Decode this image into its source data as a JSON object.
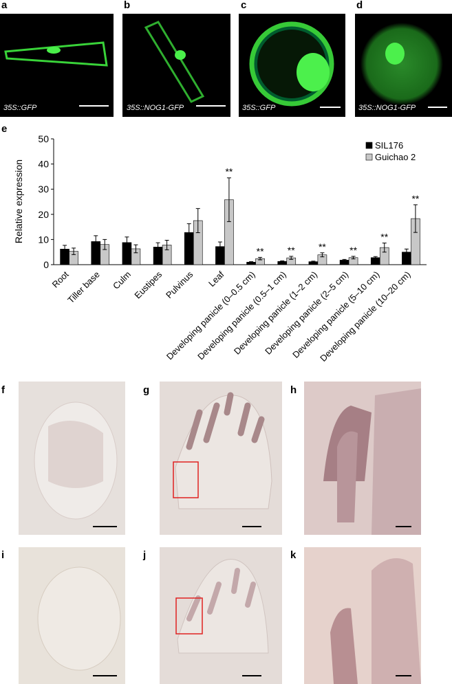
{
  "panels": [
    {
      "letter": "a",
      "caption": "35S::GFP"
    },
    {
      "letter": "b",
      "caption": "35S::NOG1-GFP"
    },
    {
      "letter": "c",
      "caption": "35S::GFP"
    },
    {
      "letter": "d",
      "caption": "35S::NOG1-GFP"
    },
    {
      "letter": "e"
    },
    {
      "letter": "f"
    },
    {
      "letter": "g"
    },
    {
      "letter": "h"
    },
    {
      "letter": "i"
    },
    {
      "letter": "j"
    },
    {
      "letter": "k"
    }
  ],
  "chart_data": {
    "type": "bar",
    "y_label": "Relative expression",
    "categories": [
      "Root",
      "Tiller base",
      "Culm",
      "Eustipes",
      "Pulvinus",
      "Leaf",
      "Developing panicle (0–0.5 cm)",
      "Developing panicle (0.5–1 cm)",
      "Developing panicle (1–2 cm)",
      "Developing panicle (2–5 cm)",
      "Developing panicle (5–10 cm)",
      "Developing panicle (10–20 cm)"
    ],
    "series": [
      {
        "name": "SIL176",
        "color": "#000000",
        "values": [
          6.2,
          9.2,
          8.8,
          7.0,
          12.8,
          7.2,
          1.0,
          1.3,
          1.2,
          1.8,
          2.8,
          5.0
        ],
        "errors": [
          1.5,
          2.3,
          2.2,
          1.7,
          3.5,
          1.8,
          0.2,
          0.2,
          0.2,
          0.3,
          0.4,
          1.2
        ]
      },
      {
        "name": "Guichao 2",
        "color": "#c8c8c8",
        "values": [
          5.3,
          8.0,
          6.3,
          7.8,
          17.5,
          25.8,
          2.4,
          2.7,
          3.9,
          2.8,
          6.8,
          18.3
        ],
        "errors": [
          1.3,
          2.0,
          1.6,
          1.9,
          4.8,
          8.7,
          0.5,
          0.6,
          0.8,
          0.5,
          1.8,
          5.5
        ]
      }
    ],
    "significance": [
      null,
      null,
      null,
      null,
      null,
      "**",
      "**",
      "**",
      "**",
      "**",
      "**",
      "**"
    ],
    "ylim": [
      0,
      50
    ],
    "yticks": [
      0,
      10,
      20,
      30,
      40,
      50
    ],
    "legend": "upper-right"
  }
}
